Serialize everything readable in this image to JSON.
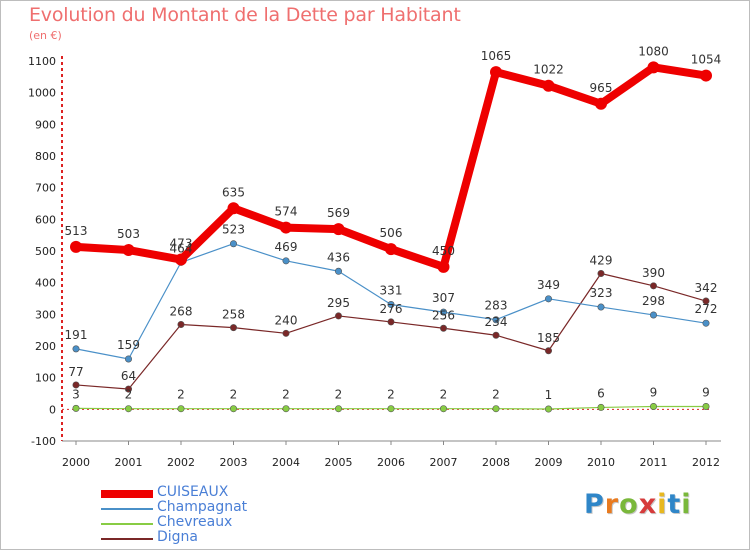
{
  "chart_data": {
    "type": "line",
    "title": "Evolution du Montant de la Dette par Habitant",
    "subtitle": "(en €)",
    "xlabel": "",
    "ylabel": "",
    "x": [
      "2000",
      "2001",
      "2002",
      "2003",
      "2004",
      "2005",
      "2006",
      "2007",
      "2008",
      "2009",
      "2010",
      "2011",
      "2012"
    ],
    "ylim": [
      -100,
      1100
    ],
    "yticks": [
      -100,
      0,
      100,
      200,
      300,
      400,
      500,
      600,
      700,
      800,
      900,
      1000,
      1100
    ],
    "grid": false,
    "legend_position": "bottom-left",
    "series": [
      {
        "name": "CUISEAUX",
        "color": "#ee0000",
        "emphasis": true,
        "values": [
          513,
          503,
          473,
          635,
          574,
          569,
          506,
          450,
          1065,
          1022,
          965,
          1080,
          1054
        ]
      },
      {
        "name": "Champagnat",
        "color": "#4a90c8",
        "emphasis": false,
        "values": [
          191,
          159,
          464,
          523,
          469,
          436,
          331,
          307,
          283,
          349,
          323,
          298,
          272
        ]
      },
      {
        "name": "Chevreaux",
        "color": "#88cc44",
        "emphasis": false,
        "values": [
          3,
          2,
          2,
          2,
          2,
          2,
          2,
          2,
          2,
          1,
          6,
          9,
          9
        ]
      },
      {
        "name": "Digna",
        "color": "#7a2828",
        "emphasis": false,
        "values": [
          77,
          64,
          268,
          258,
          240,
          295,
          276,
          256,
          234,
          185,
          429,
          390,
          342
        ]
      }
    ]
  },
  "logo": {
    "letters": [
      "P",
      "r",
      "o",
      "x",
      "i",
      "t",
      "i"
    ],
    "colors": [
      "#2f86c8",
      "#e87a1f",
      "#7ab83b",
      "#d63b3b",
      "#e8b81f",
      "#2f86c8",
      "#7ab83b"
    ]
  }
}
